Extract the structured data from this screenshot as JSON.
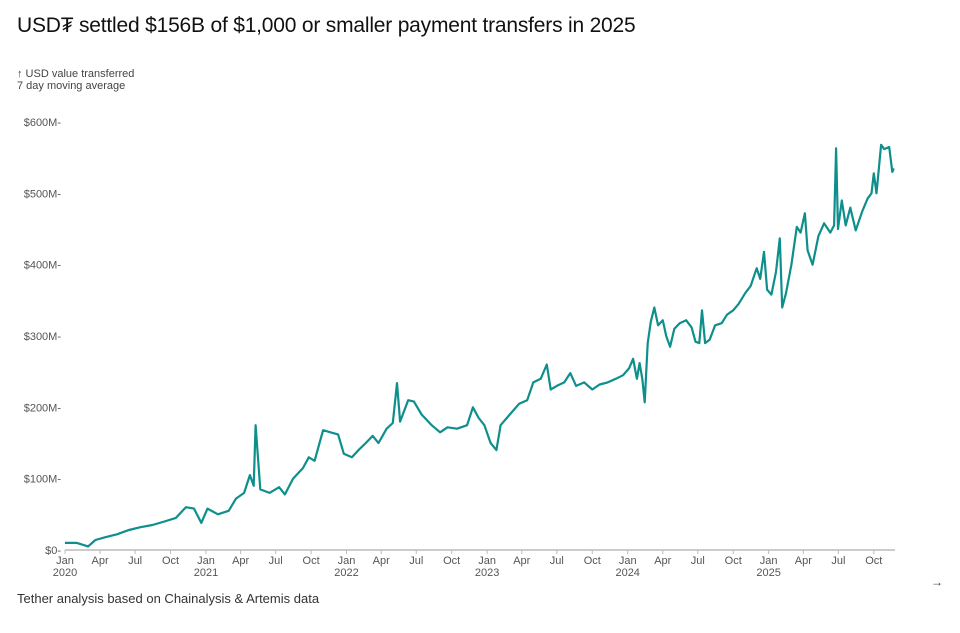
{
  "title": "USD₮ settled $156B of $1,000 or smaller payment transfers in 2025",
  "subtitle": {
    "line1": "↑ USD value transferred",
    "line2": "7 day moving average"
  },
  "footnote": "Tether analysis based on Chainalysis & Artemis data",
  "nav_icon": "arrow-right-icon",
  "chart_data": {
    "type": "line",
    "title": "USD₮ settled $156B of $1,000 or smaller payment transfers in 2025",
    "ylabel": "↑ USD value transferred",
    "ylabel2": "7 day moving average",
    "xlabel": "",
    "ylim": [
      0,
      600
    ],
    "xlim": [
      "2020-01-01",
      "2025-11-25"
    ],
    "grid": false,
    "line_color": "#0e8f8c",
    "y_ticks": [
      {
        "value": 0,
        "label": "$0"
      },
      {
        "value": 100,
        "label": "$100M"
      },
      {
        "value": 200,
        "label": "$200M"
      },
      {
        "value": 300,
        "label": "$300M"
      },
      {
        "value": 400,
        "label": "$400M"
      },
      {
        "value": 500,
        "label": "$500M"
      },
      {
        "value": 600,
        "label": "$600M"
      }
    ],
    "x_ticks": [
      {
        "date": "2020-01-01",
        "label": "Jan",
        "year": "2020"
      },
      {
        "date": "2020-04-01",
        "label": "Apr",
        "year": ""
      },
      {
        "date": "2020-07-01",
        "label": "Jul",
        "year": ""
      },
      {
        "date": "2020-10-01",
        "label": "Oct",
        "year": ""
      },
      {
        "date": "2021-01-01",
        "label": "Jan",
        "year": "2021"
      },
      {
        "date": "2021-04-01",
        "label": "Apr",
        "year": ""
      },
      {
        "date": "2021-07-01",
        "label": "Jul",
        "year": ""
      },
      {
        "date": "2021-10-01",
        "label": "Oct",
        "year": ""
      },
      {
        "date": "2022-01-01",
        "label": "Jan",
        "year": "2022"
      },
      {
        "date": "2022-04-01",
        "label": "Apr",
        "year": ""
      },
      {
        "date": "2022-07-01",
        "label": "Jul",
        "year": ""
      },
      {
        "date": "2022-10-01",
        "label": "Oct",
        "year": ""
      },
      {
        "date": "2023-01-01",
        "label": "Jan",
        "year": "2023"
      },
      {
        "date": "2023-04-01",
        "label": "Apr",
        "year": ""
      },
      {
        "date": "2023-07-01",
        "label": "Jul",
        "year": ""
      },
      {
        "date": "2023-10-01",
        "label": "Oct",
        "year": ""
      },
      {
        "date": "2024-01-01",
        "label": "Jan",
        "year": "2024"
      },
      {
        "date": "2024-04-01",
        "label": "Apr",
        "year": ""
      },
      {
        "date": "2024-07-01",
        "label": "Jul",
        "year": ""
      },
      {
        "date": "2024-10-01",
        "label": "Oct",
        "year": ""
      },
      {
        "date": "2025-01-01",
        "label": "Jan",
        "year": "2025"
      },
      {
        "date": "2025-04-01",
        "label": "Apr",
        "year": ""
      },
      {
        "date": "2025-07-01",
        "label": "Jul",
        "year": ""
      },
      {
        "date": "2025-10-01",
        "label": "Oct",
        "year": ""
      }
    ],
    "series": [
      {
        "points": [
          [
            "2020-01-01",
            10
          ],
          [
            "2020-02-01",
            10
          ],
          [
            "2020-03-01",
            5
          ],
          [
            "2020-03-20",
            14
          ],
          [
            "2020-04-15",
            18
          ],
          [
            "2020-05-15",
            22
          ],
          [
            "2020-06-15",
            28
          ],
          [
            "2020-07-15",
            32
          ],
          [
            "2020-08-15",
            35
          ],
          [
            "2020-09-15",
            40
          ],
          [
            "2020-10-15",
            45
          ],
          [
            "2020-11-10",
            60
          ],
          [
            "2020-12-01",
            58
          ],
          [
            "2020-12-20",
            38
          ],
          [
            "2021-01-05",
            58
          ],
          [
            "2021-02-01",
            50
          ],
          [
            "2021-03-01",
            55
          ],
          [
            "2021-03-20",
            72
          ],
          [
            "2021-04-10",
            80
          ],
          [
            "2021-04-25",
            105
          ],
          [
            "2021-05-05",
            90
          ],
          [
            "2021-05-10",
            175
          ],
          [
            "2021-05-22",
            85
          ],
          [
            "2021-06-15",
            80
          ],
          [
            "2021-07-10",
            88
          ],
          [
            "2021-07-25",
            78
          ],
          [
            "2021-08-15",
            100
          ],
          [
            "2021-09-10",
            115
          ],
          [
            "2021-09-25",
            130
          ],
          [
            "2021-10-10",
            125
          ],
          [
            "2021-11-01",
            168
          ],
          [
            "2021-11-20",
            165
          ],
          [
            "2021-12-10",
            162
          ],
          [
            "2021-12-25",
            135
          ],
          [
            "2022-01-15",
            130
          ],
          [
            "2022-02-01",
            140
          ],
          [
            "2022-02-20",
            150
          ],
          [
            "2022-03-10",
            160
          ],
          [
            "2022-03-25",
            150
          ],
          [
            "2022-04-15",
            170
          ],
          [
            "2022-05-01",
            178
          ],
          [
            "2022-05-12",
            234
          ],
          [
            "2022-05-20",
            180
          ],
          [
            "2022-06-10",
            210
          ],
          [
            "2022-06-25",
            208
          ],
          [
            "2022-07-15",
            190
          ],
          [
            "2022-08-10",
            175
          ],
          [
            "2022-09-01",
            165
          ],
          [
            "2022-09-20",
            172
          ],
          [
            "2022-10-15",
            170
          ],
          [
            "2022-11-10",
            175
          ],
          [
            "2022-11-25",
            200
          ],
          [
            "2022-12-10",
            185
          ],
          [
            "2022-12-25",
            175
          ],
          [
            "2023-01-10",
            150
          ],
          [
            "2023-01-25",
            140
          ],
          [
            "2023-02-05",
            175
          ],
          [
            "2023-03-01",
            190
          ],
          [
            "2023-03-25",
            205
          ],
          [
            "2023-04-15",
            210
          ],
          [
            "2023-05-01",
            235
          ],
          [
            "2023-05-20",
            240
          ],
          [
            "2023-06-05",
            260
          ],
          [
            "2023-06-15",
            225
          ],
          [
            "2023-07-01",
            230
          ],
          [
            "2023-07-20",
            235
          ],
          [
            "2023-08-05",
            248
          ],
          [
            "2023-08-20",
            230
          ],
          [
            "2023-09-10",
            235
          ],
          [
            "2023-10-01",
            225
          ],
          [
            "2023-10-20",
            232
          ],
          [
            "2023-11-10",
            235
          ],
          [
            "2023-12-01",
            240
          ],
          [
            "2023-12-20",
            245
          ],
          [
            "2024-01-05",
            255
          ],
          [
            "2024-01-15",
            268
          ],
          [
            "2024-01-25",
            240
          ],
          [
            "2024-02-01",
            262
          ],
          [
            "2024-02-08",
            240
          ],
          [
            "2024-02-14",
            207
          ],
          [
            "2024-02-22",
            290
          ],
          [
            "2024-03-01",
            320
          ],
          [
            "2024-03-10",
            340
          ],
          [
            "2024-03-20",
            315
          ],
          [
            "2024-04-01",
            322
          ],
          [
            "2024-04-10",
            300
          ],
          [
            "2024-04-20",
            285
          ],
          [
            "2024-05-01",
            310
          ],
          [
            "2024-05-15",
            318
          ],
          [
            "2024-06-01",
            322
          ],
          [
            "2024-06-15",
            312
          ],
          [
            "2024-06-25",
            292
          ],
          [
            "2024-07-05",
            290
          ],
          [
            "2024-07-12",
            336
          ],
          [
            "2024-07-20",
            290
          ],
          [
            "2024-08-01",
            295
          ],
          [
            "2024-08-15",
            315
          ],
          [
            "2024-09-01",
            318
          ],
          [
            "2024-09-15",
            330
          ],
          [
            "2024-10-01",
            336
          ],
          [
            "2024-10-15",
            345
          ],
          [
            "2024-11-01",
            360
          ],
          [
            "2024-11-15",
            370
          ],
          [
            "2024-12-01",
            395
          ],
          [
            "2024-12-10",
            380
          ],
          [
            "2024-12-20",
            418
          ],
          [
            "2024-12-28",
            365
          ],
          [
            "2025-01-08",
            358
          ],
          [
            "2025-01-20",
            390
          ],
          [
            "2025-01-30",
            437
          ],
          [
            "2025-02-05",
            340
          ],
          [
            "2025-02-15",
            360
          ],
          [
            "2025-03-01",
            400
          ],
          [
            "2025-03-15",
            453
          ],
          [
            "2025-03-25",
            445
          ],
          [
            "2025-04-05",
            472
          ],
          [
            "2025-04-12",
            420
          ],
          [
            "2025-04-25",
            400
          ],
          [
            "2025-05-10",
            440
          ],
          [
            "2025-05-25",
            458
          ],
          [
            "2025-06-10",
            445
          ],
          [
            "2025-06-20",
            455
          ],
          [
            "2025-06-25",
            563
          ],
          [
            "2025-06-30",
            450
          ],
          [
            "2025-07-10",
            490
          ],
          [
            "2025-07-20",
            455
          ],
          [
            "2025-08-01",
            480
          ],
          [
            "2025-08-15",
            448
          ],
          [
            "2025-09-01",
            475
          ],
          [
            "2025-09-15",
            493
          ],
          [
            "2025-09-25",
            500
          ],
          [
            "2025-10-01",
            528
          ],
          [
            "2025-10-08",
            500
          ],
          [
            "2025-10-20",
            568
          ],
          [
            "2025-10-28",
            562
          ],
          [
            "2025-11-10",
            565
          ],
          [
            "2025-11-18",
            530
          ],
          [
            "2025-11-22",
            535
          ]
        ]
      }
    ]
  }
}
